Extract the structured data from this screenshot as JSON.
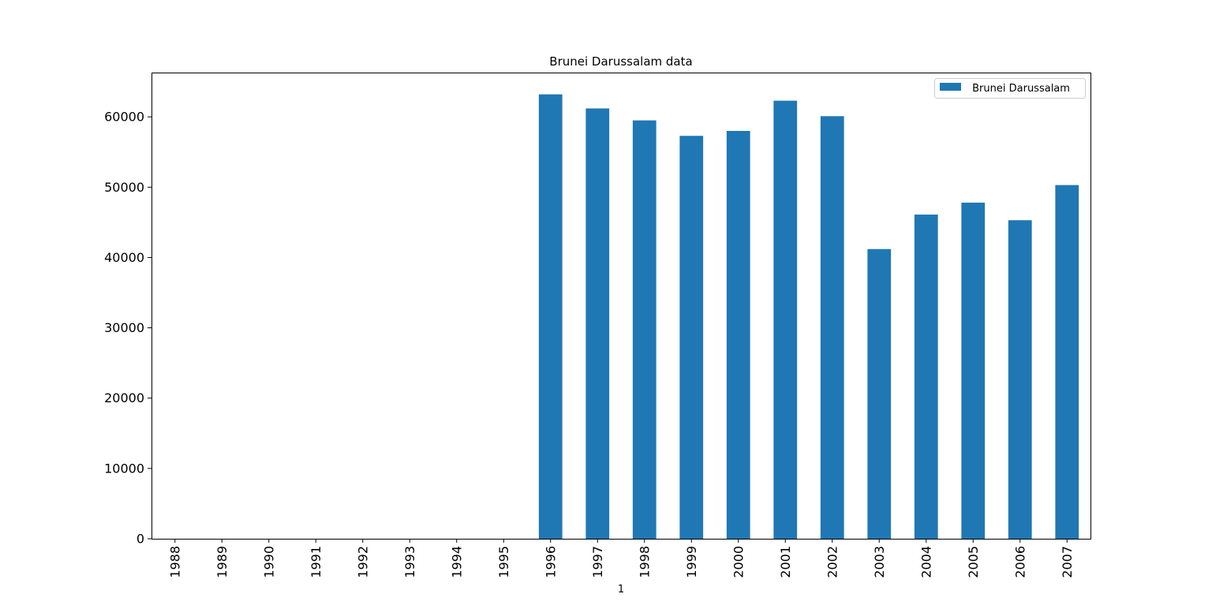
{
  "chart_data": {
    "type": "bar",
    "title": "Brunei Darussalam data",
    "xlabel": "1",
    "ylabel": "",
    "categories": [
      "1988",
      "1989",
      "1990",
      "1991",
      "1992",
      "1993",
      "1994",
      "1995",
      "1996",
      "1997",
      "1998",
      "1999",
      "2000",
      "2001",
      "2002",
      "2003",
      "2004",
      "2005",
      "2006",
      "2007"
    ],
    "series": [
      {
        "name": " Brunei Darussalam",
        "color": "#1f77b4",
        "values": [
          0,
          0,
          0,
          0,
          0,
          0,
          0,
          0,
          63200,
          61200,
          59500,
          57300,
          58000,
          62300,
          60100,
          41200,
          46100,
          47800,
          45300,
          50300
        ]
      }
    ],
    "ylim": [
      0,
      66300
    ],
    "yticks": [
      0,
      10000,
      20000,
      30000,
      40000,
      50000,
      60000
    ],
    "ytick_labels": [
      "0",
      "10000",
      "20000",
      "30000",
      "40000",
      "50000",
      "60000"
    ],
    "grid": false,
    "legend": "top-right"
  }
}
